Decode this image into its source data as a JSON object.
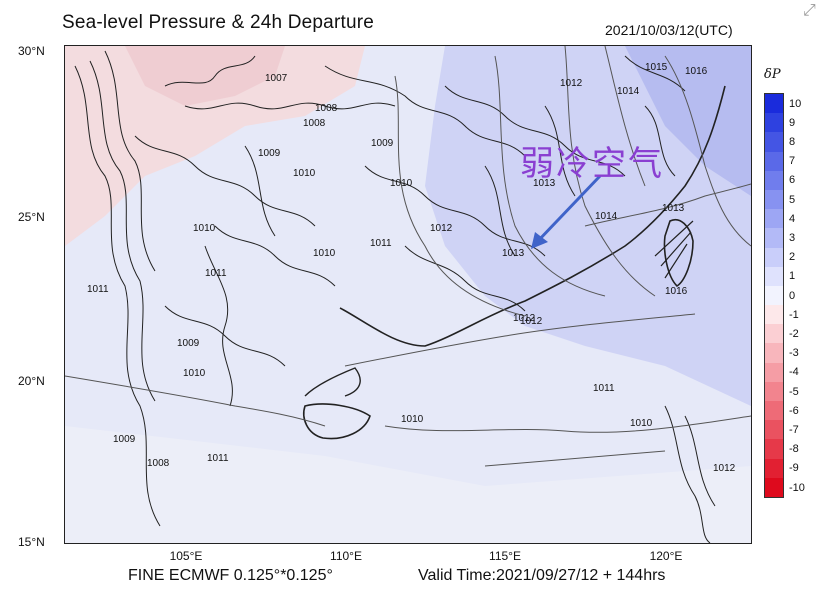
{
  "title": "Sea-level Pressure & 24h Departure",
  "datetime": "2021/10/03/12(UTC)",
  "footer_left": "FINE ECMWF 0.125°*0.125°",
  "footer_right": "Valid Time:2021/09/27/12 + 144hrs",
  "annotation": "弱冷空气",
  "colorbar": {
    "title": "δP",
    "ticks": [
      "10",
      "9",
      "8",
      "7",
      "6",
      "5",
      "4",
      "3",
      "2",
      "1",
      "0",
      "-1",
      "-2",
      "-3",
      "-4",
      "-5",
      "-6",
      "-7",
      "-8",
      "-9",
      "-10"
    ],
    "colors": [
      "#1a2bdc",
      "#2e41e0",
      "#4455e4",
      "#5a69e8",
      "#707ded",
      "#8792f1",
      "#9da6f4",
      "#b3baf7",
      "#c9cefa",
      "#dfe2fd",
      "#f2f3fe",
      "#fde8ea",
      "#fbcfd3",
      "#f8b6bc",
      "#f59da5",
      "#f2848e",
      "#ee6b77",
      "#ea5260",
      "#e63949",
      "#e22032",
      "#de0a1d"
    ]
  },
  "lat_labels": [
    "30°N",
    "25°N",
    "20°N",
    "15°N"
  ],
  "lon_labels": [
    "105°E",
    "110°E",
    "115°E",
    "120°E"
  ],
  "contour_labels": [
    "1007",
    "1008",
    "1009",
    "1009",
    "1010",
    "1010",
    "1010",
    "1010",
    "1011",
    "1011",
    "1011",
    "1012",
    "1012",
    "1012",
    "1013",
    "1013",
    "1013",
    "1014",
    "1014",
    "1015",
    "1016",
    "1016",
    "1008",
    "1009",
    "1010",
    "1011",
    "1012",
    "1011",
    "1010",
    "1010",
    "1009",
    "1008",
    "1012"
  ],
  "icons": {
    "corner": "expand-icon",
    "arrow": "arrow-icon"
  }
}
